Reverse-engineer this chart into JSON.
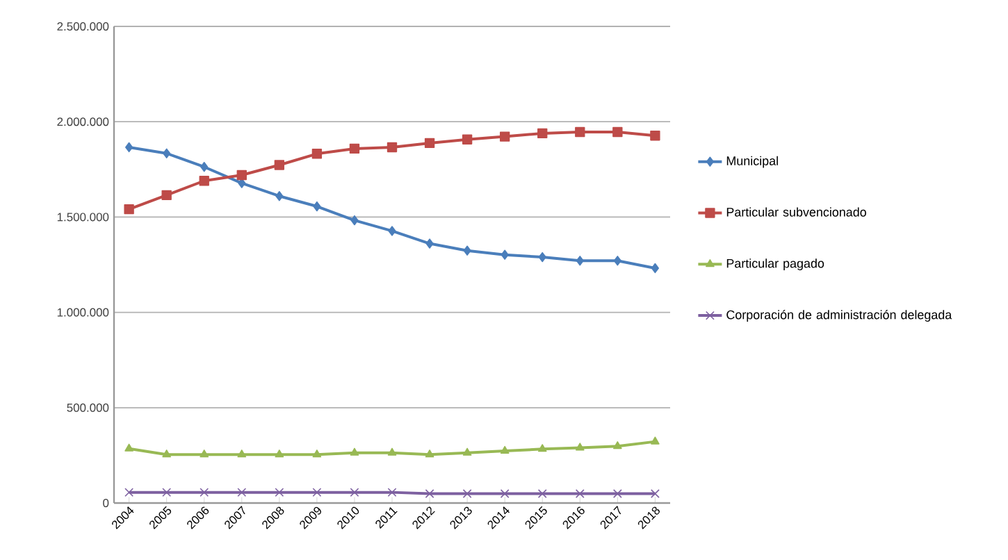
{
  "chart_data": {
    "type": "line",
    "categories": [
      "2004",
      "2005",
      "2006",
      "2007",
      "2008",
      "2009",
      "2010",
      "2011",
      "2012",
      "2013",
      "2014",
      "2015",
      "2016",
      "2017",
      "2018"
    ],
    "series": [
      {
        "name": "Municipal",
        "color": "#4a7ebb",
        "marker": "diamond",
        "values": [
          1866000,
          1834000,
          1763000,
          1678000,
          1610000,
          1556000,
          1483000,
          1427000,
          1361000,
          1324000,
          1302000,
          1290000,
          1271000,
          1271000,
          1232000
        ]
      },
      {
        "name": "Particular subvencionado",
        "color": "#be4b48",
        "marker": "square",
        "values": [
          1541000,
          1615000,
          1690000,
          1720000,
          1773000,
          1832000,
          1859000,
          1866000,
          1888000,
          1907000,
          1922000,
          1939000,
          1946000,
          1946000,
          1927000
        ]
      },
      {
        "name": "Particular pagado",
        "color": "#98b954",
        "marker": "triangle",
        "values": [
          285000,
          254000,
          254000,
          254000,
          254000,
          254000,
          263000,
          263000,
          254000,
          263000,
          273000,
          283000,
          290000,
          298000,
          322000
        ]
      },
      {
        "name": "Corporación de administración delegada",
        "color": "#7d60a0",
        "marker": "cross",
        "values": [
          56000,
          56000,
          56000,
          56000,
          56000,
          56000,
          56000,
          56000,
          49000,
          49000,
          49000,
          49000,
          49000,
          49000,
          49000
        ]
      }
    ],
    "ylim": [
      0,
      2500000
    ],
    "yticks": [
      0,
      {
        "value": 500000,
        "label": "500.000"
      },
      {
        "value": 1000000,
        "label": "1.000.000"
      },
      {
        "value": 1500000,
        "label": "1.500.000"
      },
      {
        "value": 2000000,
        "label": "2.000.000"
      },
      {
        "value": 2500000,
        "label": "2.500.000"
      }
    ],
    "grid": "y",
    "legend": "right",
    "line_style": "solid"
  }
}
